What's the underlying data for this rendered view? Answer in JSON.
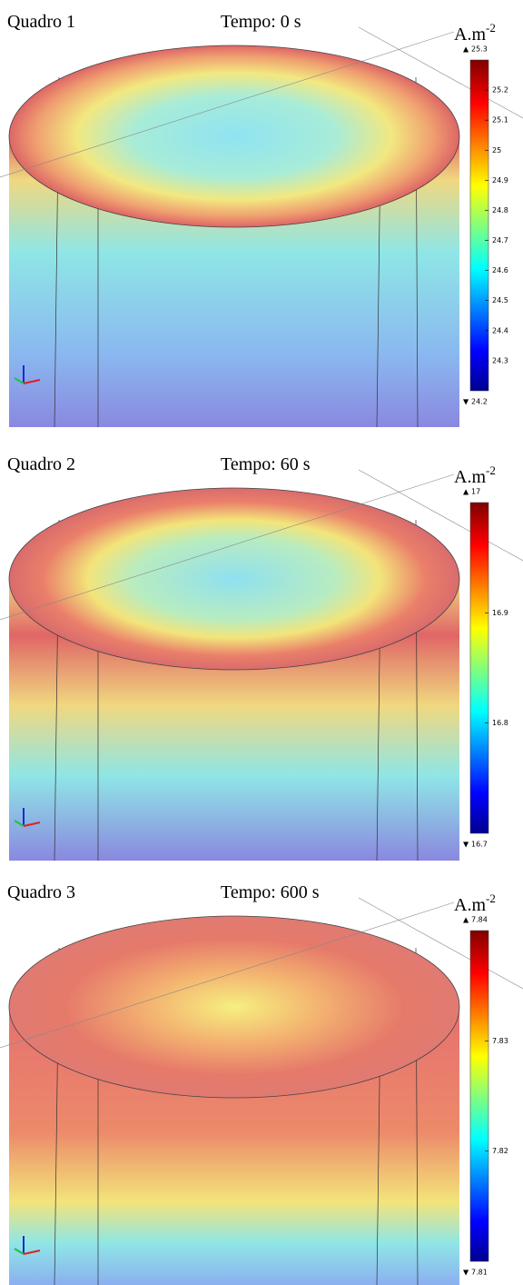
{
  "panels": [
    {
      "label": "Quadro 1",
      "time": "Tempo: 0 s",
      "unit": "A.m",
      "unit_exp": "-2",
      "max": 25.3,
      "min": 24.2,
      "ticks": [
        24.3,
        24.4,
        24.5,
        24.6,
        24.7,
        24.8,
        24.9,
        25,
        25.1,
        25.2
      ]
    },
    {
      "label": "Quadro 2",
      "time": "Tempo: 60 s",
      "unit": "A.m",
      "unit_exp": "-2",
      "max": 17,
      "min": 16.7,
      "ticks": [
        16.8,
        16.9
      ]
    },
    {
      "label": "Quadro 3",
      "time": "Tempo: 600 s",
      "unit": "A.m",
      "unit_exp": "-2",
      "max": 7.84,
      "min": 7.81,
      "ticks": [
        7.82,
        7.83
      ]
    }
  ]
}
